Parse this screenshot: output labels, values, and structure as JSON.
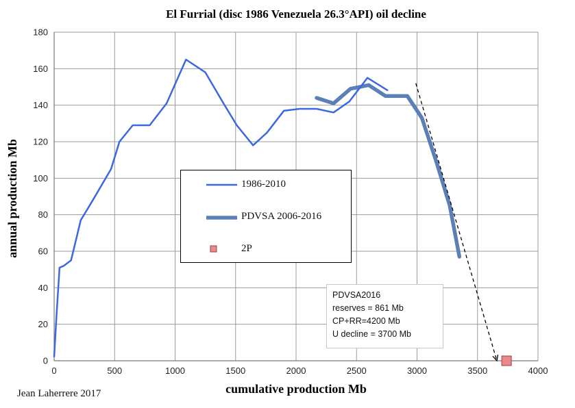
{
  "chart_data": {
    "type": "line",
    "title": "El Furrial (disc 1986 Venezuela 26.3°API) oil decline",
    "xlabel": "cumulative production Mb",
    "ylabel": "annual production Mb",
    "xlim": [
      0,
      4000
    ],
    "ylim": [
      0,
      180
    ],
    "xticks": [
      "0",
      "500",
      "1000",
      "1500",
      "2000",
      "2500",
      "3000",
      "3500",
      "4000"
    ],
    "yticks": [
      "0",
      "20",
      "40",
      "60",
      "80",
      "100",
      "120",
      "140",
      "160",
      "180"
    ],
    "grid": true,
    "legend_position": "center",
    "series": [
      {
        "name": "1986-2010",
        "color": "#3b67e0",
        "points": [
          [
            0,
            2
          ],
          [
            20,
            25
          ],
          [
            45,
            51
          ],
          [
            80,
            52
          ],
          [
            140,
            55
          ],
          [
            220,
            77
          ],
          [
            320,
            88
          ],
          [
            470,
            105
          ],
          [
            540,
            120
          ],
          [
            650,
            129
          ],
          [
            790,
            129
          ],
          [
            930,
            141
          ],
          [
            1090,
            165
          ],
          [
            1250,
            158
          ],
          [
            1400,
            141
          ],
          [
            1510,
            129
          ],
          [
            1645,
            118
          ],
          [
            1760,
            125
          ],
          [
            1900,
            137
          ],
          [
            2030,
            138
          ],
          [
            2170,
            138
          ],
          [
            2310,
            136
          ],
          [
            2440,
            142
          ],
          [
            2590,
            155
          ],
          [
            2760,
            148
          ]
        ]
      },
      {
        "name": "PDVSA 2006-2016",
        "color": "#5b80b8",
        "points": [
          [
            2170,
            144
          ],
          [
            2310,
            141
          ],
          [
            2450,
            149
          ],
          [
            2600,
            151
          ],
          [
            2740,
            145
          ],
          [
            2920,
            145
          ],
          [
            3040,
            133
          ],
          [
            3160,
            109
          ],
          [
            3270,
            85
          ],
          [
            3350,
            57
          ]
        ]
      },
      {
        "name": "2P",
        "color": "#e88a8a",
        "points": [
          [
            3740,
            0
          ]
        ]
      }
    ],
    "trend_line": {
      "style": "dashed",
      "color": "#000000",
      "points": [
        [
          2990,
          152
        ],
        [
          3660,
          0
        ]
      ]
    },
    "annotation": {
      "lines": [
        "PDVSA2016",
        "reserves = 861 Mb",
        "CP+RR=4200 Mb",
        "U decline = 3700 Mb"
      ]
    },
    "credit": "Jean Laherrere 2017"
  }
}
